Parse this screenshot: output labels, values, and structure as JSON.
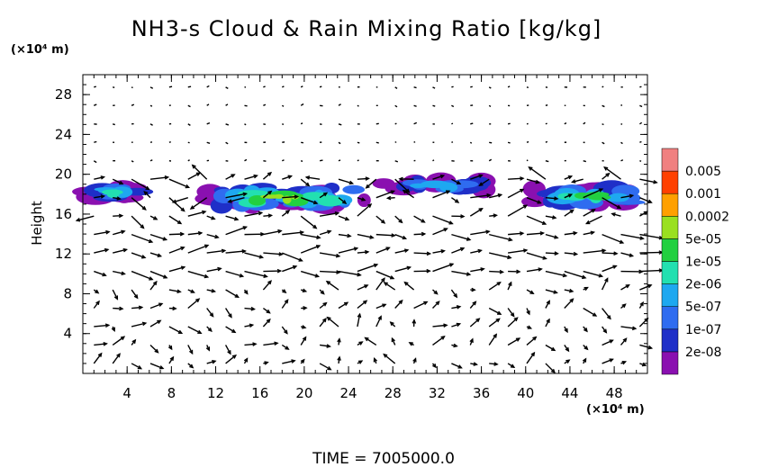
{
  "chart_data": {
    "type": "heatmap",
    "title": "NH3-s Cloud & Rain Mixing Ratio [kg/kg]",
    "ylabel": "Height",
    "x_unit": "(×10⁴ m)",
    "y_unit": "(×10⁴ m)",
    "xlim": [
      0,
      51
    ],
    "ylim": [
      0,
      30
    ],
    "x_ticks": [
      4,
      8,
      12,
      16,
      20,
      24,
      28,
      32,
      36,
      40,
      44,
      48
    ],
    "y_ticks": [
      4,
      8,
      12,
      16,
      20,
      24,
      28
    ],
    "colorbar": {
      "labels": [
        "2e-08",
        "1e-07",
        "5e-07",
        "2e-06",
        "1e-05",
        "5e-05",
        "0.0002",
        "0.001",
        "0.005"
      ],
      "colors": [
        "#8a10b0",
        "#1f2fc8",
        "#2f6cf0",
        "#1ea8f0",
        "#22e0b0",
        "#22d040",
        "#9ae020",
        "#ffa000",
        "#ff4000",
        "#f08080"
      ]
    },
    "regions": [
      {
        "x": [
          0,
          5.5
        ],
        "y": [
          16.8,
          19.6
        ],
        "peak": "1e-05"
      },
      {
        "x": [
          10,
          27
        ],
        "y": [
          15.7,
          19.6
        ],
        "peak": "0.0002"
      },
      {
        "x": [
          27,
          37
        ],
        "y": [
          17.8,
          19.8
        ],
        "peak": "2e-06"
      },
      {
        "x": [
          40,
          51
        ],
        "y": [
          16.2,
          19.4
        ],
        "peak": "5e-05"
      }
    ],
    "vectors": "wind vectors"
  },
  "footer": {
    "time_label": "TIME  =  7005000.0"
  }
}
